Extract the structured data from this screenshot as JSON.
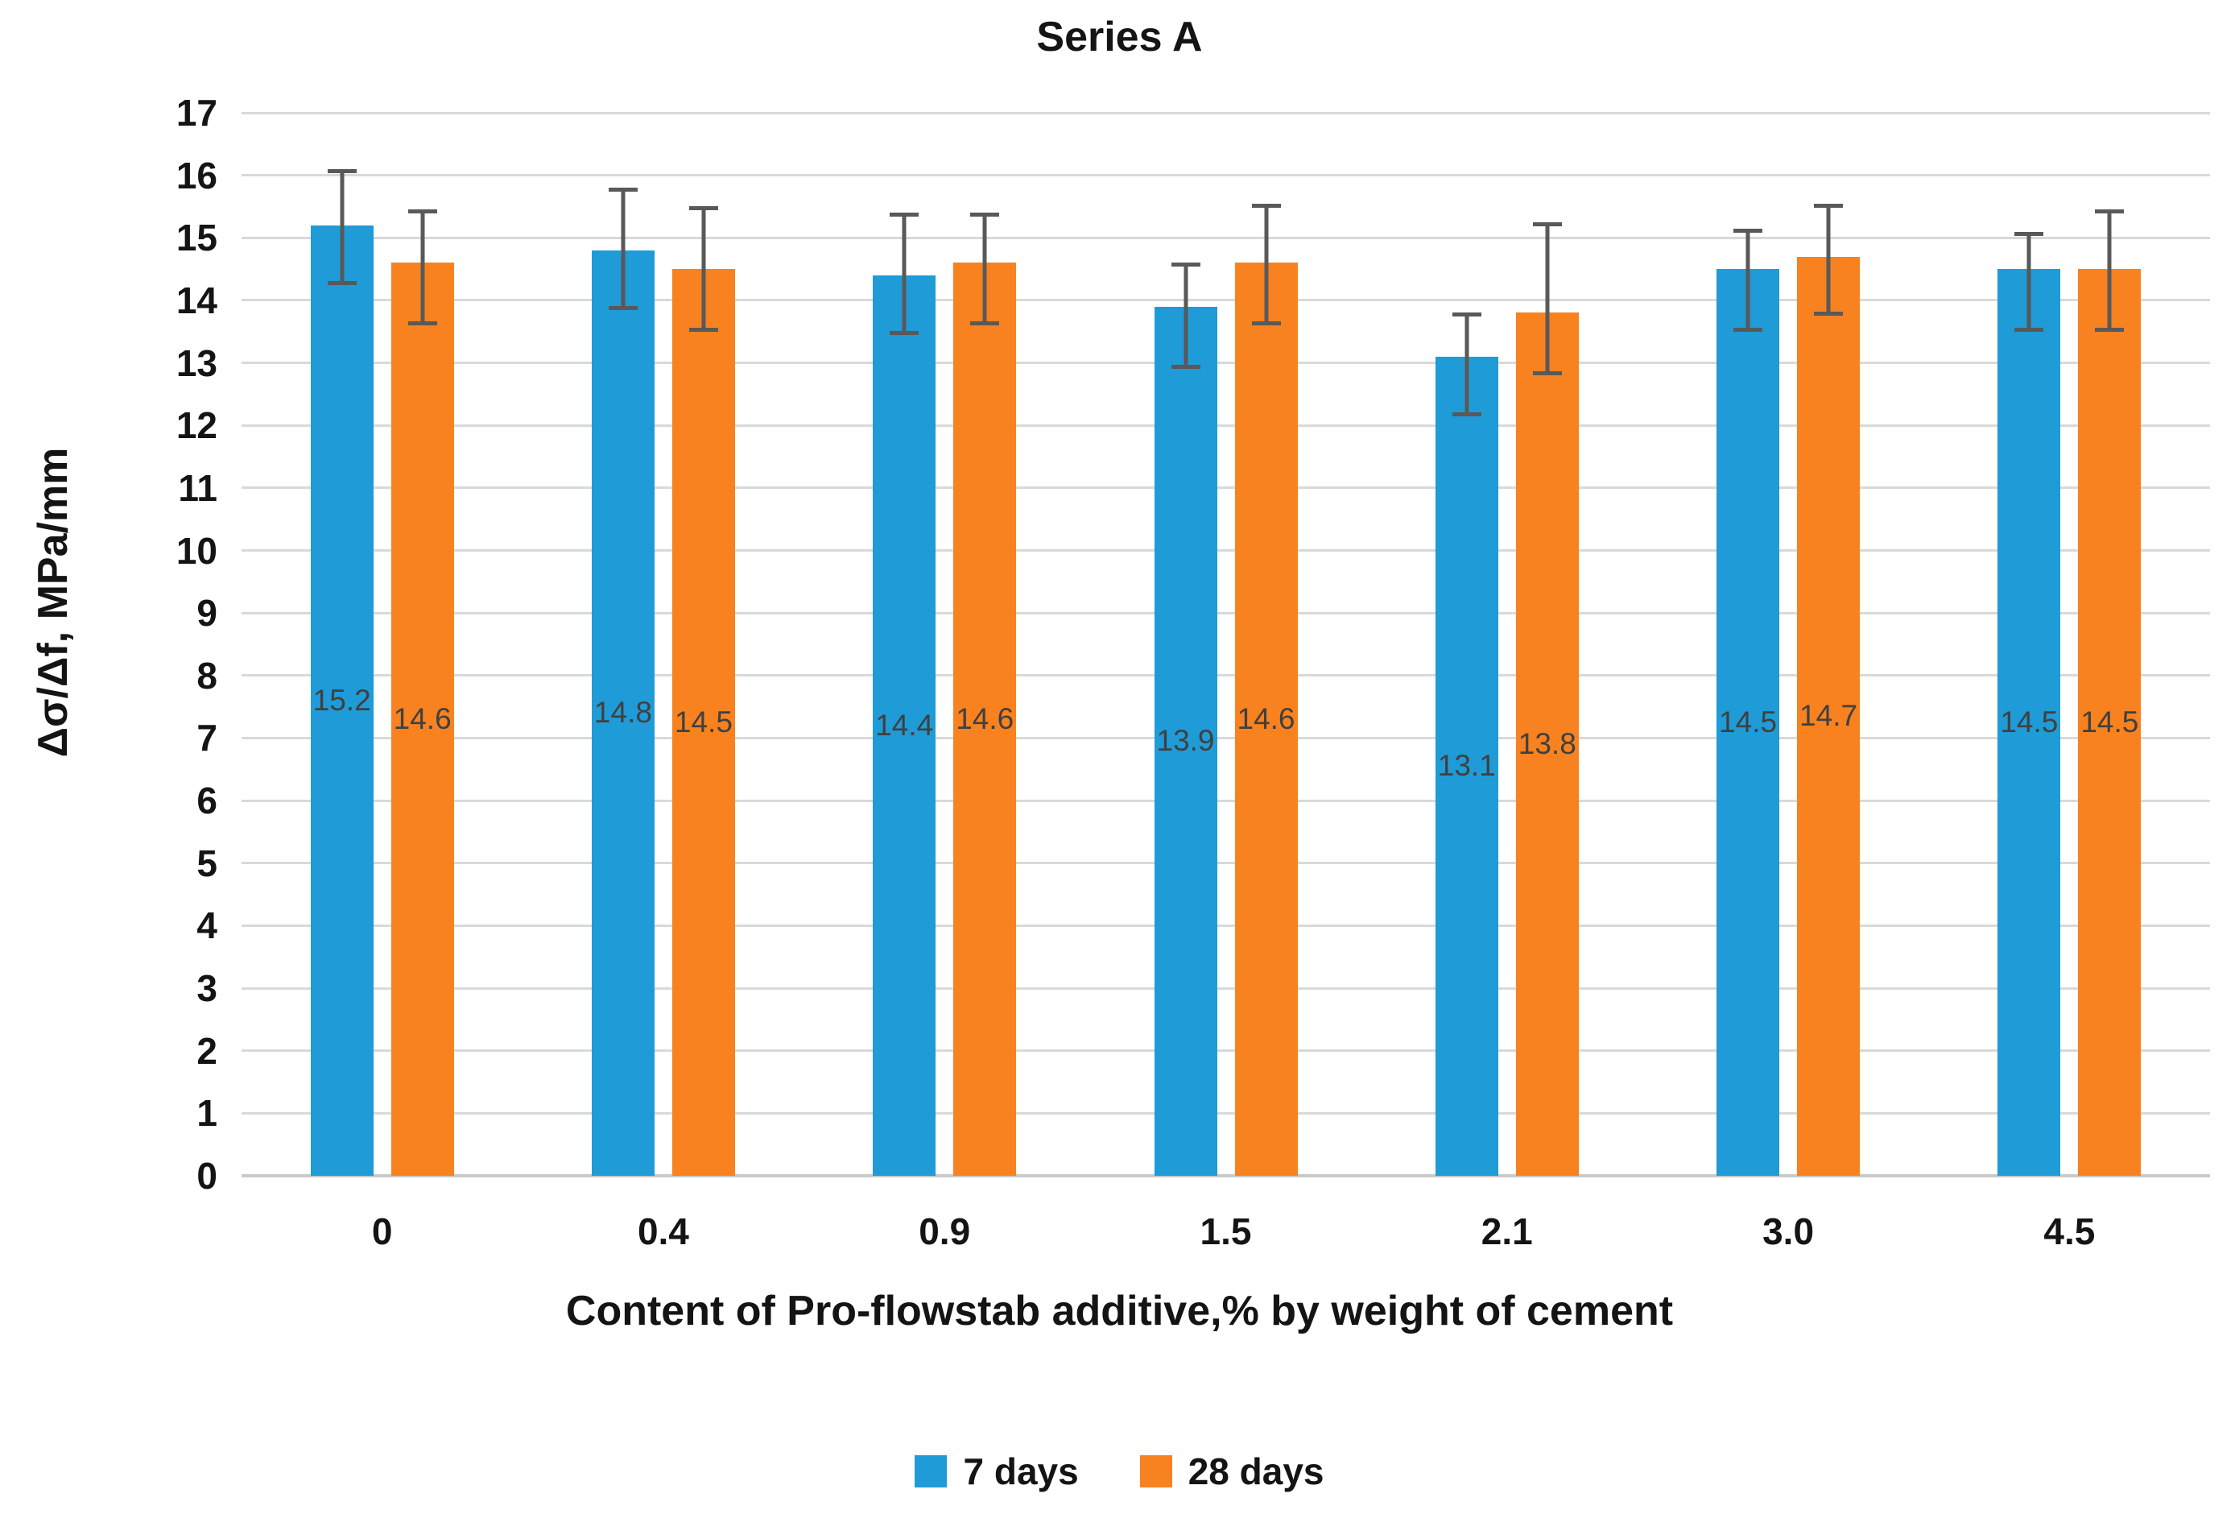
{
  "chart_data": {
    "type": "bar",
    "title": "Series A",
    "xlabel": "Content of Pro-flowstab additive,% by weight of cement",
    "ylabel": "Δσ/Δf, MPa/mm",
    "categories": [
      "0",
      "0.4",
      "0.9",
      "1.5",
      "2.1",
      "3.0",
      "4.5"
    ],
    "series": [
      {
        "name": "7 days",
        "color": "#1F9BD7",
        "values": [
          15.2,
          14.8,
          14.4,
          13.9,
          13.1,
          14.5,
          14.5
        ],
        "error_up": [
          0.9,
          1.0,
          1.0,
          0.7,
          0.7,
          0.65,
          0.6
        ],
        "error_down": [
          0.95,
          0.95,
          0.95,
          1.0,
          0.95,
          1.0,
          1.0
        ]
      },
      {
        "name": "28 days",
        "color": "#F8821F",
        "values": [
          14.6,
          14.5,
          14.6,
          14.6,
          13.8,
          14.7,
          14.5
        ],
        "error_up": [
          0.85,
          1.0,
          0.8,
          0.95,
          1.45,
          0.85,
          0.95
        ],
        "error_down": [
          1.0,
          1.0,
          1.0,
          1.0,
          1.0,
          0.95,
          1.0
        ]
      }
    ],
    "data_labels_visible": true,
    "ylim": [
      0,
      17
    ],
    "ytick_step": 1,
    "grid": "horizontal",
    "legend_position": "bottom",
    "error_bar_color": "#595959",
    "gridline_color": "#D9D9D9",
    "data_label_color": "#404040"
  }
}
